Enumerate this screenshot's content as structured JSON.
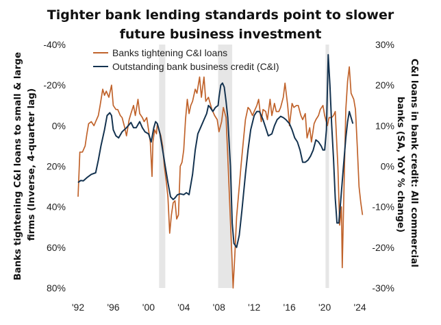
{
  "chart_data": {
    "type": "line",
    "title_line1": "Tighter bank lending standards point to slower",
    "title_line2": "future business investment",
    "ylabel_left_line1": "Banks tightening C&I loans to small & large",
    "ylabel_left_line2": "firms (Inverse, 4-quarter lag)",
    "ylabel_right_line1": "C&I loans in bank credit: All commercial",
    "ylabel_right_line2": "banks (SA, YoY % change)",
    "left_axis": {
      "range": [
        -40,
        80
      ],
      "inverted": true,
      "ticks": [
        -40,
        -20,
        0,
        20,
        40,
        60,
        80
      ],
      "tick_labels": [
        "-40%",
        "-20%",
        "0%",
        "20%",
        "40%",
        "60%",
        "80%"
      ]
    },
    "right_axis": {
      "range": [
        -30,
        30
      ],
      "ticks": [
        30,
        20,
        10,
        0,
        -10,
        -20,
        -30
      ],
      "tick_labels": [
        "30%",
        "20%",
        "10%",
        "0%",
        "-10%",
        "-20%",
        "-30%"
      ]
    },
    "x_axis": {
      "range": [
        1992,
        2024.5
      ],
      "ticks": [
        1992,
        1996,
        2000,
        2004,
        2008,
        2012,
        2016,
        2020,
        2024
      ],
      "tick_labels": [
        "'92",
        "'96",
        "'00",
        "'04",
        "'08",
        "'12",
        "'16",
        "'20",
        "'24"
      ]
    },
    "recessions": [
      [
        2001.2,
        2001.9
      ],
      [
        2007.9,
        2009.5
      ],
      [
        2020.1,
        2020.5
      ]
    ],
    "legend_position": "top-left",
    "series": [
      {
        "name": "Banks tightening C&I loans",
        "color": "#c0622a",
        "axis": "left",
        "points": [
          [
            1992.0,
            35
          ],
          [
            1992.2,
            13
          ],
          [
            1992.5,
            13
          ],
          [
            1992.8,
            10
          ],
          [
            1993.0,
            4
          ],
          [
            1993.2,
            -1
          ],
          [
            1993.5,
            -2
          ],
          [
            1993.8,
            0
          ],
          [
            1994.0,
            -2
          ],
          [
            1994.3,
            -5
          ],
          [
            1994.5,
            -10
          ],
          [
            1994.8,
            -18
          ],
          [
            1995.0,
            -15
          ],
          [
            1995.2,
            -17
          ],
          [
            1995.5,
            -14
          ],
          [
            1995.8,
            -20
          ],
          [
            1996.0,
            -10
          ],
          [
            1996.3,
            -8
          ],
          [
            1996.5,
            -8
          ],
          [
            1996.8,
            -5
          ],
          [
            1997.0,
            -4
          ],
          [
            1997.3,
            1
          ],
          [
            1997.5,
            5
          ],
          [
            1997.8,
            -3
          ],
          [
            1998.0,
            -6
          ],
          [
            1998.3,
            -10
          ],
          [
            1998.5,
            -5
          ],
          [
            1998.8,
            -13
          ],
          [
            1999.0,
            -6
          ],
          [
            1999.3,
            -4
          ],
          [
            1999.5,
            -2
          ],
          [
            1999.8,
            -4
          ],
          [
            2000.0,
            2
          ],
          [
            2000.2,
            8
          ],
          [
            2000.4,
            25
          ],
          [
            2000.5,
            8
          ],
          [
            2000.7,
            2
          ],
          [
            2000.9,
            4
          ],
          [
            2001.0,
            -1
          ],
          [
            2001.2,
            2
          ],
          [
            2001.4,
            5
          ],
          [
            2001.6,
            10
          ],
          [
            2001.8,
            20
          ],
          [
            2002.0,
            27
          ],
          [
            2002.2,
            35
          ],
          [
            2002.4,
            53
          ],
          [
            2002.6,
            44
          ],
          [
            2002.8,
            38
          ],
          [
            2003.0,
            37
          ],
          [
            2003.2,
            46
          ],
          [
            2003.4,
            44
          ],
          [
            2003.6,
            20
          ],
          [
            2003.8,
            18
          ],
          [
            2004.0,
            12
          ],
          [
            2004.2,
            -3
          ],
          [
            2004.4,
            -13
          ],
          [
            2004.6,
            -6
          ],
          [
            2004.8,
            -10
          ],
          [
            2005.0,
            -12
          ],
          [
            2005.3,
            -18
          ],
          [
            2005.5,
            -16
          ],
          [
            2005.8,
            -24
          ],
          [
            2006.0,
            -14
          ],
          [
            2006.3,
            -24
          ],
          [
            2006.5,
            -12
          ],
          [
            2006.8,
            -14
          ],
          [
            2007.0,
            -11
          ],
          [
            2007.2,
            -8
          ],
          [
            2007.5,
            -5
          ],
          [
            2007.8,
            -3
          ],
          [
            2008.0,
            3
          ],
          [
            2008.3,
            -2
          ],
          [
            2008.5,
            -9
          ],
          [
            2008.8,
            -4
          ],
          [
            2009.0,
            15
          ],
          [
            2009.3,
            47
          ],
          [
            2009.5,
            68
          ],
          [
            2009.6,
            80
          ],
          [
            2009.8,
            64
          ],
          [
            2010.0,
            45
          ],
          [
            2010.3,
            30
          ],
          [
            2010.5,
            20
          ],
          [
            2010.8,
            6
          ],
          [
            2011.0,
            -3
          ],
          [
            2011.3,
            -9
          ],
          [
            2011.5,
            -8
          ],
          [
            2011.8,
            -5
          ],
          [
            2012.0,
            -7
          ],
          [
            2012.3,
            -10
          ],
          [
            2012.5,
            -13
          ],
          [
            2012.8,
            -2
          ],
          [
            2013.0,
            -8
          ],
          [
            2013.3,
            -7
          ],
          [
            2013.5,
            -3
          ],
          [
            2013.8,
            -13
          ],
          [
            2014.0,
            -5
          ],
          [
            2014.3,
            -11
          ],
          [
            2014.5,
            -7
          ],
          [
            2014.8,
            -7
          ],
          [
            2015.0,
            -9
          ],
          [
            2015.3,
            -14
          ],
          [
            2015.5,
            -21
          ],
          [
            2015.8,
            -10
          ],
          [
            2016.0,
            0
          ],
          [
            2016.3,
            -11
          ],
          [
            2016.5,
            -9
          ],
          [
            2016.8,
            -10
          ],
          [
            2017.0,
            -10
          ],
          [
            2017.3,
            -5
          ],
          [
            2017.5,
            -3
          ],
          [
            2017.8,
            -6
          ],
          [
            2018.0,
            6
          ],
          [
            2018.3,
            1
          ],
          [
            2018.5,
            8
          ],
          [
            2018.8,
            -1
          ],
          [
            2019.0,
            -3
          ],
          [
            2019.3,
            -5
          ],
          [
            2019.5,
            -8
          ],
          [
            2019.8,
            -10
          ],
          [
            2020.0,
            -5
          ],
          [
            2020.3,
            0
          ],
          [
            2020.5,
            -4
          ],
          [
            2020.8,
            -4
          ],
          [
            2021.0,
            -5
          ],
          [
            2021.2,
            -7
          ],
          [
            2021.4,
            11
          ],
          [
            2021.5,
            20
          ],
          [
            2021.7,
            49
          ],
          [
            2021.9,
            40
          ],
          [
            2022.0,
            70
          ],
          [
            2022.2,
            30
          ],
          [
            2022.4,
            -8
          ],
          [
            2022.6,
            -22
          ],
          [
            2022.8,
            -29
          ],
          [
            2023.0,
            -16
          ],
          [
            2023.3,
            -13
          ],
          [
            2023.5,
            -8
          ],
          [
            2023.7,
            10
          ],
          [
            2023.9,
            30
          ],
          [
            2024.1,
            38
          ],
          [
            2024.3,
            44
          ]
        ]
      },
      {
        "name": "Outstanding bank business credit (C&I)",
        "color": "#13324f",
        "axis": "right",
        "points": [
          [
            1992.0,
            -4.0
          ],
          [
            1992.3,
            -3.5
          ],
          [
            1992.6,
            -3.6
          ],
          [
            1993.0,
            -2.8
          ],
          [
            1993.5,
            -2.0
          ],
          [
            1994.0,
            -1.6
          ],
          [
            1994.3,
            1.5
          ],
          [
            1994.6,
            5.0
          ],
          [
            1995.0,
            9.0
          ],
          [
            1995.3,
            12.5
          ],
          [
            1995.6,
            13.2
          ],
          [
            1995.8,
            12.5
          ],
          [
            1996.0,
            9.0
          ],
          [
            1996.3,
            7.5
          ],
          [
            1996.6,
            7.0
          ],
          [
            1997.0,
            8.5
          ],
          [
            1997.5,
            9.5
          ],
          [
            1998.0,
            10.8
          ],
          [
            1998.3,
            9.5
          ],
          [
            1998.6,
            9.5
          ],
          [
            1999.0,
            11.0
          ],
          [
            1999.3,
            9.5
          ],
          [
            1999.6,
            8.5
          ],
          [
            2000.0,
            8.0
          ],
          [
            2000.3,
            6.0
          ],
          [
            2000.6,
            9.5
          ],
          [
            2000.8,
            11.0
          ],
          [
            2001.0,
            10.5
          ],
          [
            2001.3,
            8.0
          ],
          [
            2001.6,
            4.0
          ],
          [
            2001.9,
            0.0
          ],
          [
            2002.2,
            -4.0
          ],
          [
            2002.5,
            -7.5
          ],
          [
            2002.8,
            -8.2
          ],
          [
            2003.0,
            -7.8
          ],
          [
            2003.3,
            -7.0
          ],
          [
            2003.6,
            -6.8
          ],
          [
            2004.0,
            -7.0
          ],
          [
            2004.3,
            -6.5
          ],
          [
            2004.6,
            -7.0
          ],
          [
            2005.0,
            -2.0
          ],
          [
            2005.3,
            4.0
          ],
          [
            2005.6,
            8.0
          ],
          [
            2006.0,
            10.0
          ],
          [
            2006.3,
            11.5
          ],
          [
            2006.6,
            13.0
          ],
          [
            2006.8,
            15.0
          ],
          [
            2007.0,
            14.5
          ],
          [
            2007.3,
            13.5
          ],
          [
            2007.6,
            14.5
          ],
          [
            2007.9,
            15.0
          ],
          [
            2008.0,
            17.0
          ],
          [
            2008.2,
            20.0
          ],
          [
            2008.4,
            20.5
          ],
          [
            2008.6,
            19.5
          ],
          [
            2008.8,
            16.0
          ],
          [
            2009.0,
            12.0
          ],
          [
            2009.3,
            0.0
          ],
          [
            2009.5,
            -14.0
          ],
          [
            2009.7,
            -19.0
          ],
          [
            2010.0,
            -20.0
          ],
          [
            2010.3,
            -17.0
          ],
          [
            2010.6,
            -11.0
          ],
          [
            2011.0,
            -2.0
          ],
          [
            2011.3,
            4.0
          ],
          [
            2011.6,
            9.0
          ],
          [
            2012.0,
            12.5
          ],
          [
            2012.3,
            13.5
          ],
          [
            2012.6,
            13.5
          ],
          [
            2013.0,
            11.5
          ],
          [
            2013.3,
            9.5
          ],
          [
            2013.6,
            7.5
          ],
          [
            2014.0,
            8.0
          ],
          [
            2014.3,
            10.0
          ],
          [
            2014.6,
            11.5
          ],
          [
            2015.0,
            12.3
          ],
          [
            2015.3,
            12.0
          ],
          [
            2015.6,
            11.5
          ],
          [
            2016.0,
            10.5
          ],
          [
            2016.3,
            9.0
          ],
          [
            2016.6,
            7.0
          ],
          [
            2016.9,
            6.0
          ],
          [
            2017.2,
            4.0
          ],
          [
            2017.5,
            1.0
          ],
          [
            2017.8,
            1.0
          ],
          [
            2018.1,
            1.5
          ],
          [
            2018.4,
            2.5
          ],
          [
            2018.7,
            4.0
          ],
          [
            2019.0,
            6.5
          ],
          [
            2019.3,
            6.0
          ],
          [
            2019.6,
            5.0
          ],
          [
            2019.8,
            4.0
          ],
          [
            2020.0,
            4.0
          ],
          [
            2020.2,
            9.0
          ],
          [
            2020.4,
            27.5
          ],
          [
            2020.6,
            20.0
          ],
          [
            2020.8,
            10.0
          ],
          [
            2021.0,
            2.0
          ],
          [
            2021.2,
            -8.0
          ],
          [
            2021.4,
            -14.0
          ],
          [
            2021.6,
            -14.0
          ],
          [
            2021.8,
            -9.0
          ],
          [
            2022.1,
            -1.0
          ],
          [
            2022.4,
            7.0
          ],
          [
            2022.6,
            11.0
          ],
          [
            2022.8,
            13.5
          ],
          [
            2023.0,
            12.0
          ],
          [
            2023.2,
            10.5
          ]
        ]
      }
    ]
  }
}
